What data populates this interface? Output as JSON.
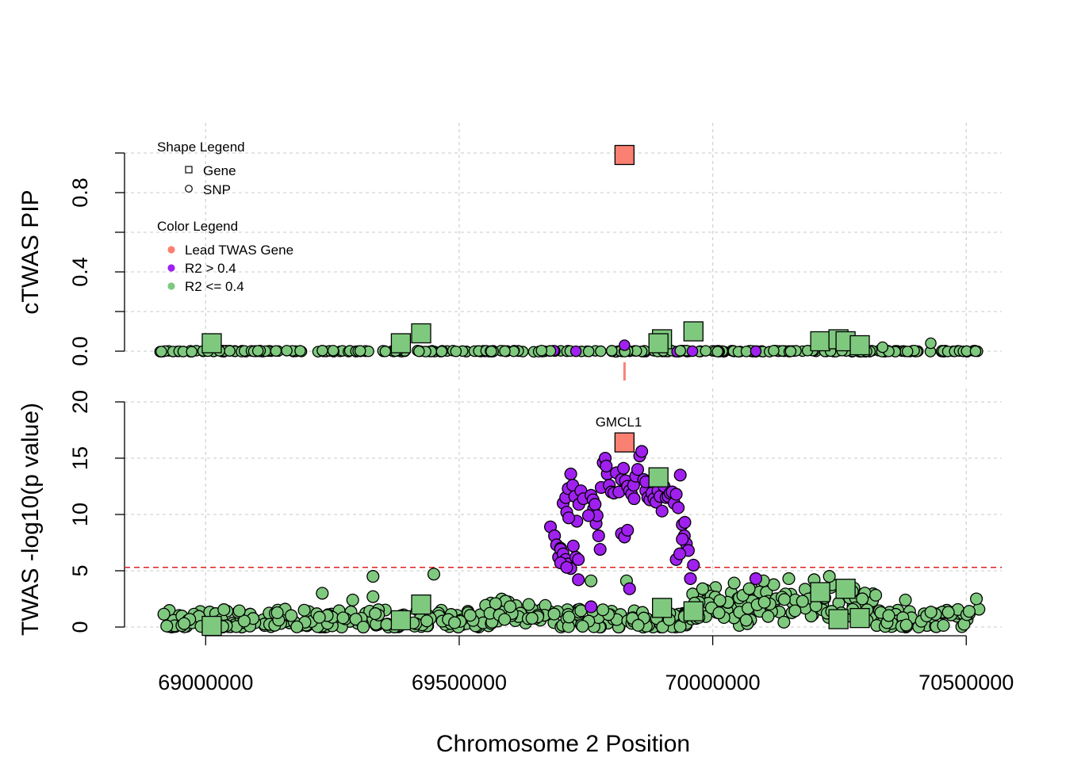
{
  "colors": {
    "lead": "#FA8072",
    "high_r2": "#A020F0",
    "low_r2": "#7FC97F",
    "threshold": "#DD2222",
    "grid": "#D3D3D3"
  },
  "legend": {
    "shape_title": "Shape Legend",
    "shape_items": [
      {
        "label": "Gene",
        "shape": "square"
      },
      {
        "label": "SNP",
        "shape": "circle"
      }
    ],
    "color_title": "Color Legend",
    "color_items": [
      {
        "label": "Lead TWAS Gene",
        "color": "#FA8072"
      },
      {
        "label": "R2 > 0.4",
        "color": "#A020F0"
      },
      {
        "label": "R2 <= 0.4",
        "color": "#7FC97F"
      }
    ]
  },
  "chart_data": [
    {
      "type": "scatter",
      "panel": "top",
      "title": "",
      "xlabel": "",
      "ylabel": "cTWAS PIP",
      "xlim": [
        68840000,
        70570000
      ],
      "ylim": [
        0,
        1
      ],
      "yticks": [
        0.0,
        0.4,
        0.8
      ],
      "yticks_minor": [
        0.0,
        0.2,
        0.4,
        0.6,
        0.8,
        1.0
      ],
      "ytick_labels": [
        "0.0",
        "0.4",
        "0.8"
      ],
      "grid": true,
      "legend_position": "top-left",
      "genes": [
        {
          "x": 69826000,
          "y": 0.99,
          "group": "lead"
        },
        {
          "x": 69012000,
          "y": 0.04,
          "group": "low"
        },
        {
          "x": 69385000,
          "y": 0.04,
          "group": "low"
        },
        {
          "x": 69425000,
          "y": 0.09,
          "group": "low"
        },
        {
          "x": 69900000,
          "y": 0.06,
          "group": "low"
        },
        {
          "x": 69893000,
          "y": 0.04,
          "group": "low"
        },
        {
          "x": 69962000,
          "y": 0.1,
          "group": "low"
        },
        {
          "x": 70212000,
          "y": 0.05,
          "group": "low"
        },
        {
          "x": 70248000,
          "y": 0.06,
          "group": "low"
        },
        {
          "x": 70262000,
          "y": 0.05,
          "group": "low"
        },
        {
          "x": 70290000,
          "y": 0.03,
          "group": "low"
        }
      ],
      "snps_highlight": [
        {
          "x": 69826000,
          "y": 0.03,
          "group": "high"
        },
        {
          "x": 70085000,
          "y": 0.0,
          "group": "high"
        },
        {
          "x": 69960000,
          "y": 0.0,
          "group": "high"
        },
        {
          "x": 70335000,
          "y": 0.02,
          "group": "low"
        },
        {
          "x": 70430000,
          "y": 0.04,
          "group": "low"
        }
      ],
      "snp_band": {
        "x_start": 68910000,
        "x_end": 70525000,
        "y": 0.0,
        "high_r2_range": [
          69680000,
          69960000
        ]
      }
    },
    {
      "type": "scatter",
      "panel": "bottom",
      "title": "",
      "xlabel": "Chromosome 2 Position",
      "ylabel": "TWAS -log10(p value)",
      "xlim": [
        68840000,
        70570000
      ],
      "ylim": [
        0,
        20
      ],
      "xticks": [
        69000000,
        69500000,
        70000000,
        70500000
      ],
      "xtick_labels": [
        "69000000",
        "69500000",
        "70000000",
        "70500000"
      ],
      "yticks": [
        0,
        5,
        10,
        15,
        20
      ],
      "ytick_labels": [
        "0",
        "5",
        "10",
        "15",
        "20"
      ],
      "grid": true,
      "threshold": 5.3,
      "lead_gene_label": "GMCL1",
      "genes": [
        {
          "x": 69826000,
          "y": 16.4,
          "group": "lead"
        },
        {
          "x": 69012000,
          "y": 0.1,
          "group": "low"
        },
        {
          "x": 69385000,
          "y": 0.6,
          "group": "low"
        },
        {
          "x": 69425000,
          "y": 2.0,
          "group": "low"
        },
        {
          "x": 69893000,
          "y": 13.3,
          "group": "low"
        },
        {
          "x": 69900000,
          "y": 1.7,
          "group": "low"
        },
        {
          "x": 69962000,
          "y": 1.4,
          "group": "low"
        },
        {
          "x": 70212000,
          "y": 3.1,
          "group": "low"
        },
        {
          "x": 70248000,
          "y": 0.7,
          "group": "low"
        },
        {
          "x": 70262000,
          "y": 3.4,
          "group": "low"
        },
        {
          "x": 70290000,
          "y": 0.8,
          "group": "low"
        }
      ],
      "snps_peak": [
        [
          69680000,
          8.9
        ],
        [
          69688000,
          8.1
        ],
        [
          69692000,
          7.3
        ],
        [
          69696000,
          6.2
        ],
        [
          69700000,
          7.0
        ],
        [
          69705000,
          11.0
        ],
        [
          69710000,
          11.5
        ],
        [
          69715000,
          12.3
        ],
        [
          69720000,
          13.6
        ],
        [
          69724000,
          12.6
        ],
        [
          69728000,
          11.6
        ],
        [
          69732000,
          9.4
        ],
        [
          69736000,
          10.9
        ],
        [
          69740000,
          12.1
        ],
        [
          69745000,
          11.4
        ],
        [
          69712000,
          10.2
        ],
        [
          69716000,
          9.7
        ],
        [
          69700000,
          6.9
        ],
        [
          69705000,
          6.5
        ],
        [
          69710000,
          6.0
        ],
        [
          69715000,
          5.6
        ],
        [
          69720000,
          5.2
        ],
        [
          69725000,
          7.2
        ],
        [
          69730000,
          6.2
        ],
        [
          69735000,
          6.0
        ],
        [
          69760000,
          1.8
        ],
        [
          69765000,
          10.5
        ],
        [
          69770000,
          9.2
        ],
        [
          69775000,
          8.1
        ],
        [
          69778000,
          6.9
        ],
        [
          69780000,
          12.4
        ],
        [
          69784000,
          14.6
        ],
        [
          69788000,
          15.0
        ],
        [
          69792000,
          13.6
        ],
        [
          69796000,
          12.6
        ],
        [
          69800000,
          12.0
        ],
        [
          69805000,
          11.9
        ],
        [
          69810000,
          13.7
        ],
        [
          69815000,
          12.0
        ],
        [
          69820000,
          13.1
        ],
        [
          69824000,
          14.1
        ],
        [
          69828000,
          13.0
        ],
        [
          69832000,
          12.5
        ],
        [
          69836000,
          12.1
        ],
        [
          69840000,
          11.8
        ],
        [
          69844000,
          12.6
        ],
        [
          69848000,
          13.4
        ],
        [
          69852000,
          14.0
        ],
        [
          69856000,
          15.2
        ],
        [
          69860000,
          15.6
        ],
        [
          69864000,
          13.1
        ],
        [
          69868000,
          12.1
        ],
        [
          69872000,
          11.5
        ],
        [
          69876000,
          11.3
        ],
        [
          69880000,
          11.9
        ],
        [
          69884000,
          11.4
        ],
        [
          69888000,
          11.1
        ],
        [
          69892000,
          12.1
        ],
        [
          69896000,
          11.6
        ],
        [
          69900000,
          10.3
        ],
        [
          69904000,
          12.5
        ],
        [
          69908000,
          11.5
        ],
        [
          69912000,
          11.6
        ],
        [
          69916000,
          11.9
        ],
        [
          69920000,
          12.0
        ],
        [
          69924000,
          11.0
        ],
        [
          69928000,
          11.8
        ],
        [
          69932000,
          10.6
        ],
        [
          69936000,
          13.5
        ],
        [
          69940000,
          9.1
        ],
        [
          69944000,
          8.1
        ],
        [
          69948000,
          7.4
        ],
        [
          69952000,
          6.8
        ],
        [
          69956000,
          4.3
        ],
        [
          69962000,
          5.5
        ],
        [
          69760000,
          11.7
        ],
        [
          69764000,
          11.3
        ],
        [
          69768000,
          10.9
        ],
        [
          69772000,
          9.9
        ],
        [
          69820000,
          8.3
        ],
        [
          69826000,
          8.0
        ],
        [
          69832000,
          8.6
        ],
        [
          69836000,
          3.4
        ],
        [
          69700000,
          5.7
        ],
        [
          69712000,
          5.3
        ],
        [
          69735000,
          4.2
        ],
        [
          69755000,
          9.9
        ],
        [
          69790000,
          14.3
        ],
        [
          69845000,
          11.4
        ],
        [
          69868000,
          12.9
        ],
        [
          70085000,
          4.3
        ],
        [
          69928000,
          6.0
        ],
        [
          69935000,
          6.5
        ],
        [
          69940000,
          7.8
        ],
        [
          69945000,
          9.3
        ]
      ]
    }
  ]
}
